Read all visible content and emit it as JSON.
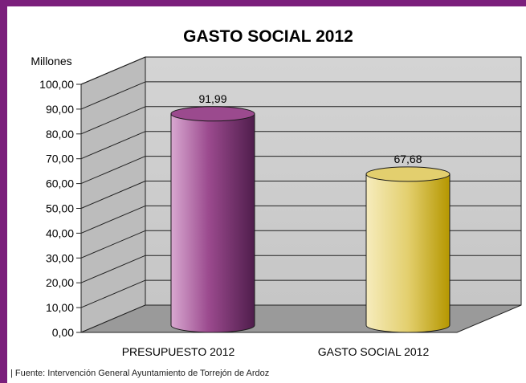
{
  "chart_data": {
    "type": "bar",
    "style": "3d-cylinder",
    "title": "GASTO SOCIAL 2012",
    "ylabel": "Millones",
    "xlabel": "",
    "ylim": [
      0,
      100
    ],
    "yticks": [
      "0,00",
      "10,00",
      "20,00",
      "30,00",
      "40,00",
      "50,00",
      "60,00",
      "70,00",
      "80,00",
      "90,00",
      "100,00"
    ],
    "grid": true,
    "categories": [
      "PRESUPUESTO 2012",
      "GASTO SOCIAL 2012"
    ],
    "values": [
      91.99,
      67.68
    ],
    "value_labels": [
      "91,99",
      "67,68"
    ],
    "colors": [
      "#9b4a8e",
      "#e3cf6e"
    ]
  },
  "source": "| Fuente: Intervención General Ayuntamiento de Torrejón de Ardoz"
}
